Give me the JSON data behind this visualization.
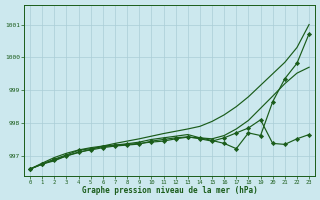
{
  "xlabel": "Graphe pression niveau de la mer (hPa)",
  "bg_color": "#cce8ee",
  "grid_color": "#aacdd6",
  "line_color": "#1a5c1a",
  "ylim": [
    996.4,
    1001.6
  ],
  "xlim": [
    -0.5,
    23.5
  ],
  "yticks": [
    997,
    998,
    999,
    1000,
    1001
  ],
  "xticks": [
    0,
    1,
    2,
    3,
    4,
    5,
    6,
    7,
    8,
    9,
    10,
    11,
    12,
    13,
    14,
    15,
    16,
    17,
    18,
    19,
    20,
    21,
    22,
    23
  ],
  "series1": [
    996.6,
    996.75,
    996.85,
    997.0,
    997.1,
    997.2,
    997.3,
    997.38,
    997.45,
    997.52,
    997.6,
    997.68,
    997.75,
    997.82,
    997.9,
    998.05,
    998.25,
    998.5,
    998.8,
    999.15,
    999.5,
    999.85,
    1000.3,
    1001.0
  ],
  "series2": [
    996.6,
    996.75,
    996.88,
    997.0,
    997.12,
    997.18,
    997.25,
    997.3,
    997.33,
    997.36,
    997.45,
    997.5,
    997.55,
    997.58,
    997.52,
    997.45,
    997.55,
    997.7,
    997.85,
    998.1,
    997.38,
    997.35,
    997.52,
    997.65
  ],
  "series3": [
    996.6,
    996.75,
    996.9,
    997.03,
    997.17,
    997.22,
    997.28,
    997.32,
    997.35,
    997.38,
    997.42,
    997.45,
    997.52,
    997.57,
    997.55,
    997.47,
    997.38,
    997.22,
    997.7,
    997.62,
    998.65,
    999.35,
    999.82,
    1000.72
  ],
  "series4": [
    996.6,
    996.78,
    996.95,
    997.08,
    997.18,
    997.25,
    997.3,
    997.33,
    997.37,
    997.42,
    997.5,
    997.55,
    997.6,
    997.65,
    997.55,
    997.52,
    997.62,
    997.82,
    998.08,
    998.45,
    998.82,
    999.2,
    999.52,
    999.7
  ]
}
